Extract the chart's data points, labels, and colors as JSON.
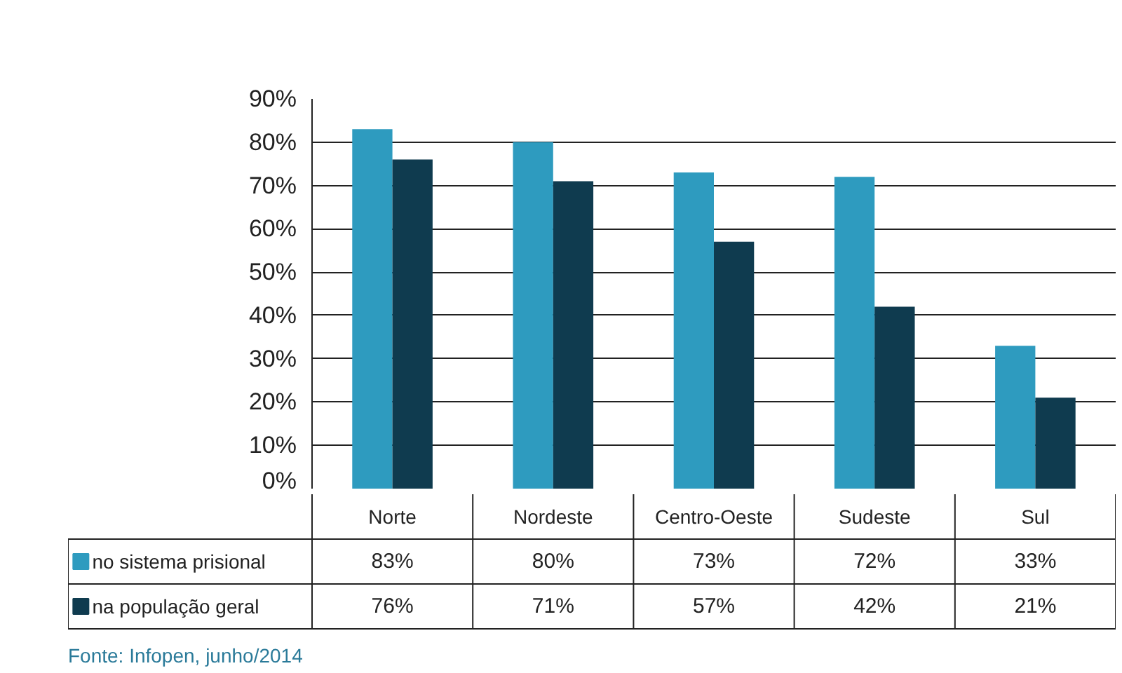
{
  "chart_data": {
    "type": "bar",
    "categories": [
      "Norte",
      "Nordeste",
      "Centro-Oeste",
      "Sudeste",
      "Sul"
    ],
    "series": [
      {
        "name": "no sistema prisional",
        "color": "#2e9bbf",
        "values": [
          83,
          80,
          73,
          72,
          33
        ]
      },
      {
        "name": "na população geral",
        "color": "#0f3b4f",
        "values": [
          76,
          71,
          57,
          42,
          21
        ]
      }
    ],
    "ylim": [
      0,
      90
    ],
    "yticks": [
      {
        "value": 0,
        "label": "0%"
      },
      {
        "value": 10,
        "label": "10%"
      },
      {
        "value": 20,
        "label": "20%"
      },
      {
        "value": 30,
        "label": "30%"
      },
      {
        "value": 40,
        "label": "40%"
      },
      {
        "value": 50,
        "label": "50%"
      },
      {
        "value": 60,
        "label": "60%"
      },
      {
        "value": 70,
        "label": "70%"
      },
      {
        "value": 80,
        "label": "80%"
      },
      {
        "value": 90,
        "label": "90%"
      }
    ],
    "grid": "y",
    "legend": "bottom left",
    "value_labels": [
      [
        "83%",
        "80%",
        "73%",
        "72%",
        "33%"
      ],
      [
        "76%",
        "71%",
        "57%",
        "42%",
        "21%"
      ]
    ],
    "annotations": [
      "Fonte: Infopen, junho/2014"
    ]
  }
}
